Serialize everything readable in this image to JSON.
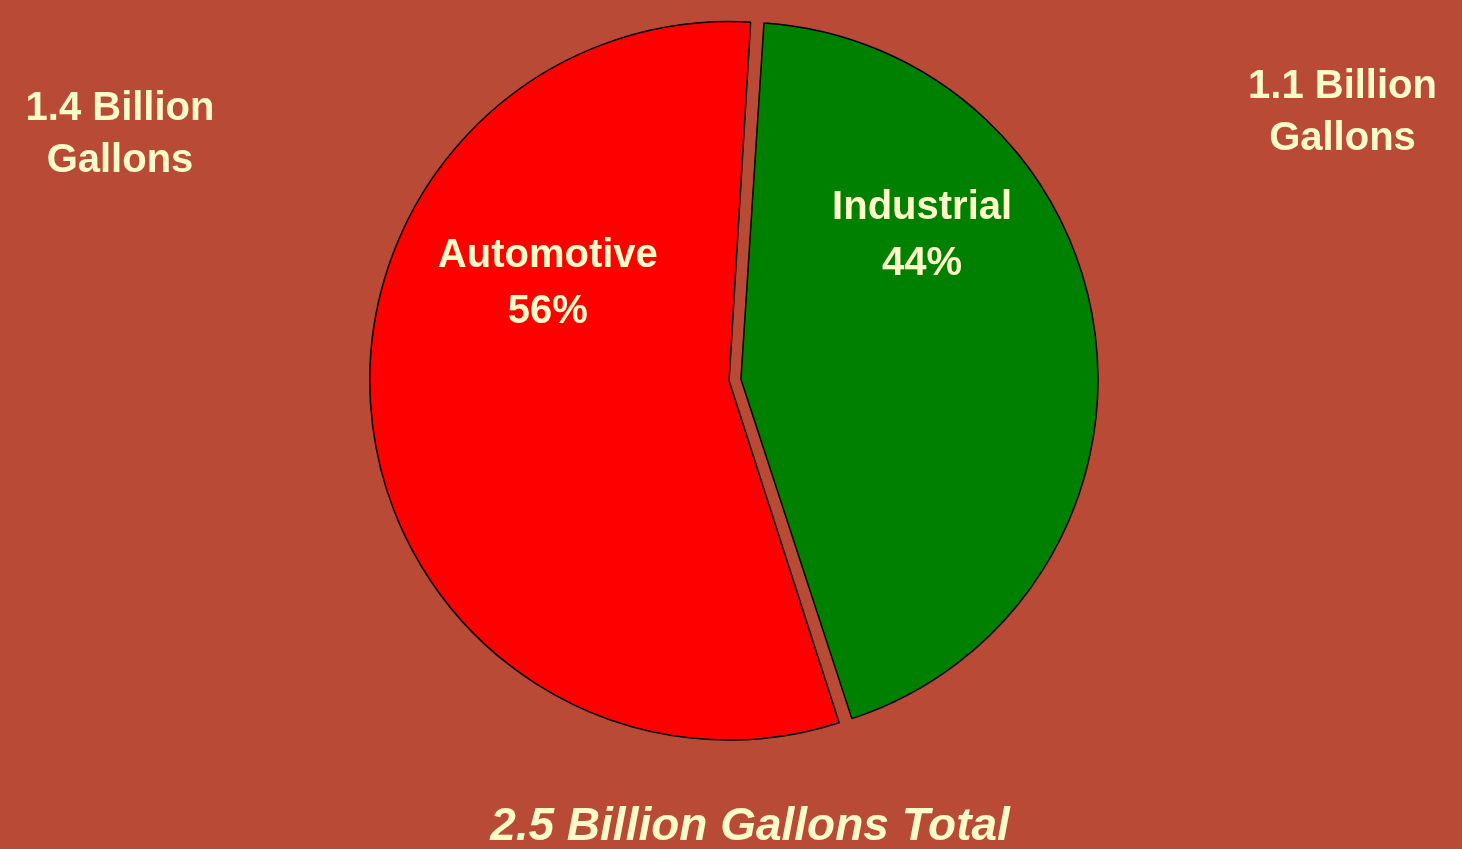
{
  "chart_data": {
    "type": "pie",
    "categories": [
      "Automotive",
      "Industrial"
    ],
    "values": [
      56,
      44
    ],
    "colors": [
      "#ff0000",
      "#008000"
    ],
    "value_labels": [
      "56%",
      "44%"
    ],
    "annotations": [
      "1.4 Billion Gallons",
      "1.1 Billion Gallons",
      "2.5 Billion Gallons Total"
    ],
    "legend": false
  }
}
